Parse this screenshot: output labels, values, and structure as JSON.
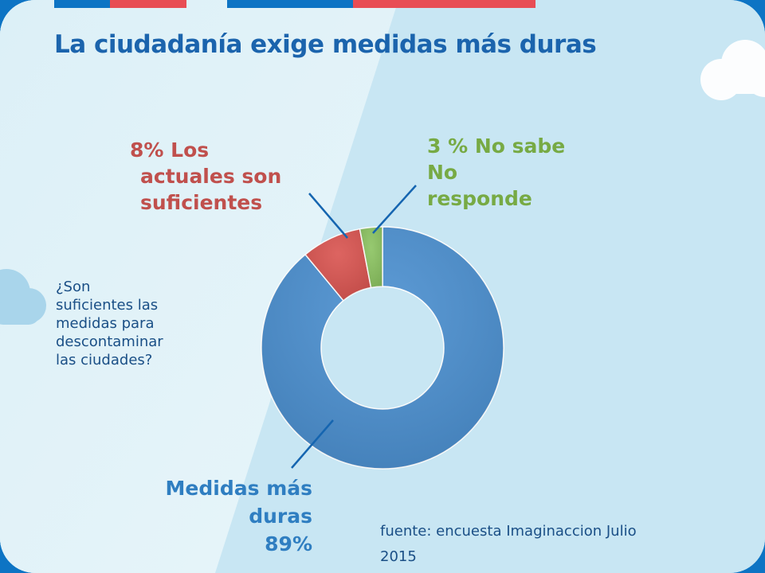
{
  "title": "La ciudadanía exige medidas más duras",
  "question": {
    "lines": [
      "¿Son",
      "suficientes las",
      "medidas para",
      "descontaminar",
      "las ciudades?"
    ]
  },
  "source": {
    "lines": [
      "fuente: encuesta Imaginaccion Julio",
      "2015"
    ]
  },
  "labels": {
    "suficientes": [
      "8% Los",
      "actuales son",
      "suficientes"
    ],
    "no_sabe": [
      "3 % No sabe",
      "No",
      "responde"
    ],
    "duras": [
      "Medidas más",
      "duras",
      "89%"
    ]
  },
  "colors": {
    "title": "#1b64ad",
    "duras": "#4a8fd0",
    "suficientes": "#d9534f",
    "no_sabe": "#8bc360",
    "frame": "#0d74c4",
    "stripe_red": "#e84d54",
    "stripe_blue": "#0d74c4"
  },
  "icons": [
    "cloud-icon"
  ],
  "chart_data": {
    "type": "pie",
    "subtype": "donut",
    "title": "",
    "slices": [
      {
        "label": "Medidas más duras",
        "value": 89,
        "color": "#4a8fd0"
      },
      {
        "label": "Los actuales son suficientes",
        "value": 8,
        "color": "#d9534f"
      },
      {
        "label": "No sabe No responde",
        "value": 3,
        "color": "#8bc360"
      }
    ],
    "start": "top",
    "direction": "clockwise",
    "legend": "none",
    "data_labels": "callouts"
  }
}
